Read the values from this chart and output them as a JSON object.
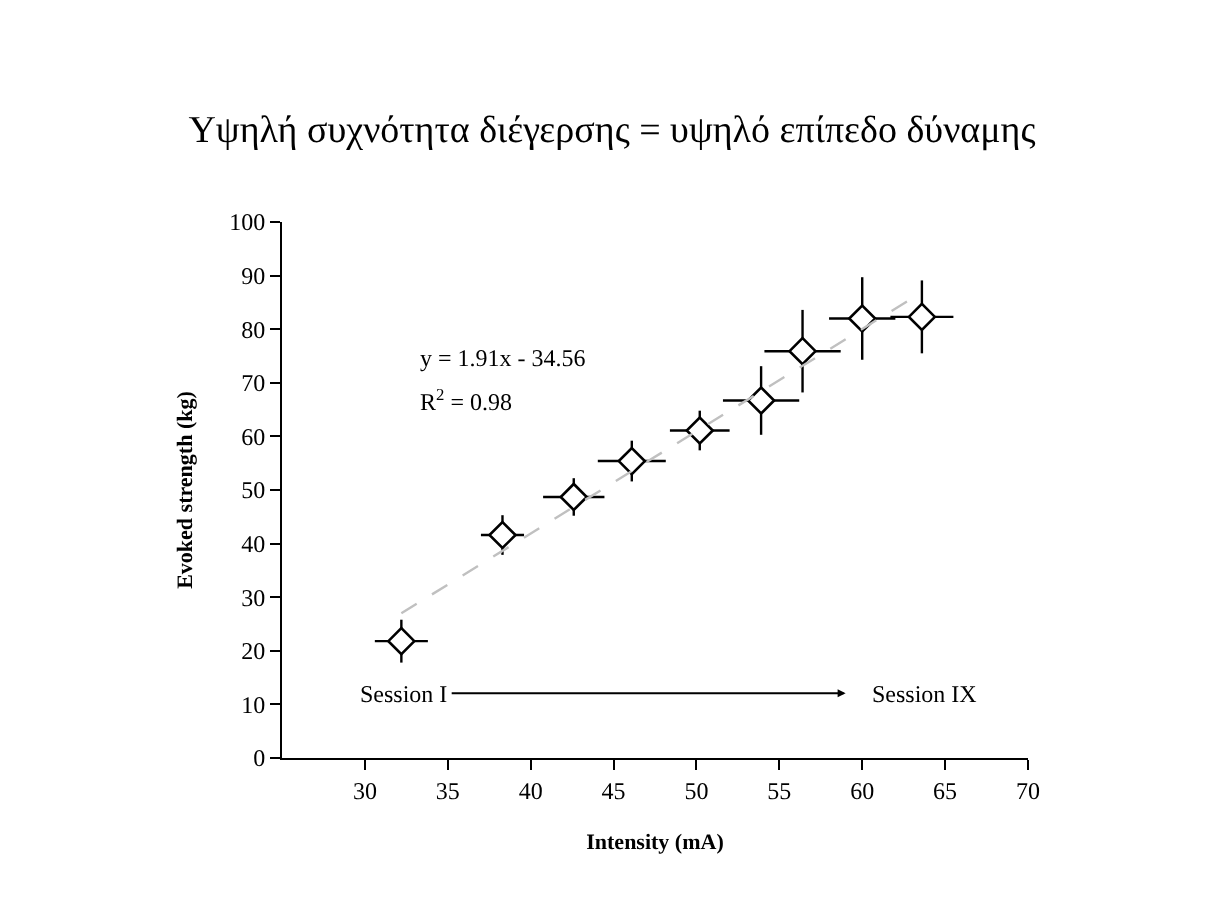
{
  "chart_data": {
    "type": "scatter",
    "title": "Υψηλή συχνότητα διέγερσης = υψηλό επίπεδο δύναμης",
    "xlabel": "Intensity (mA)",
    "ylabel": "Evoked strength (kg)",
    "xlim": [
      25,
      70
    ],
    "xticks": [
      30,
      35,
      40,
      45,
      50,
      55,
      60,
      65,
      70
    ],
    "ylim": [
      0,
      100
    ],
    "yticks": [
      0,
      10,
      20,
      30,
      40,
      50,
      60,
      70,
      80,
      90,
      100
    ],
    "marker": "diamond",
    "series": [
      {
        "color": "#000000",
        "x": [
          32.2,
          38.3,
          42.6,
          46.1,
          50.2,
          53.9,
          56.4,
          60.0,
          63.6
        ],
        "values": [
          21.8,
          41.6,
          48.7,
          55.4,
          61.1,
          66.7,
          75.9,
          82.0,
          82.3
        ],
        "errors": [
          4.0,
          3.7,
          3.5,
          3.8,
          3.7,
          6.4,
          7.7,
          7.7,
          6.8
        ],
        "xerrors": [
          1.6,
          1.3,
          1.85,
          2.05,
          1.8,
          2.3,
          2.3,
          2.0,
          1.9
        ]
      },
      {
        "type": "line",
        "color": "#c0c0c0",
        "line_style": "dashed",
        "marker": "none",
        "x": [
          32.2,
          63.6
        ],
        "values": [
          27.0,
          86.9
        ]
      }
    ],
    "annotations": [
      "y = 1.91x - 34.56",
      "R$^{2}$ = 0.98",
      "Session I",
      "Session IX"
    ]
  }
}
